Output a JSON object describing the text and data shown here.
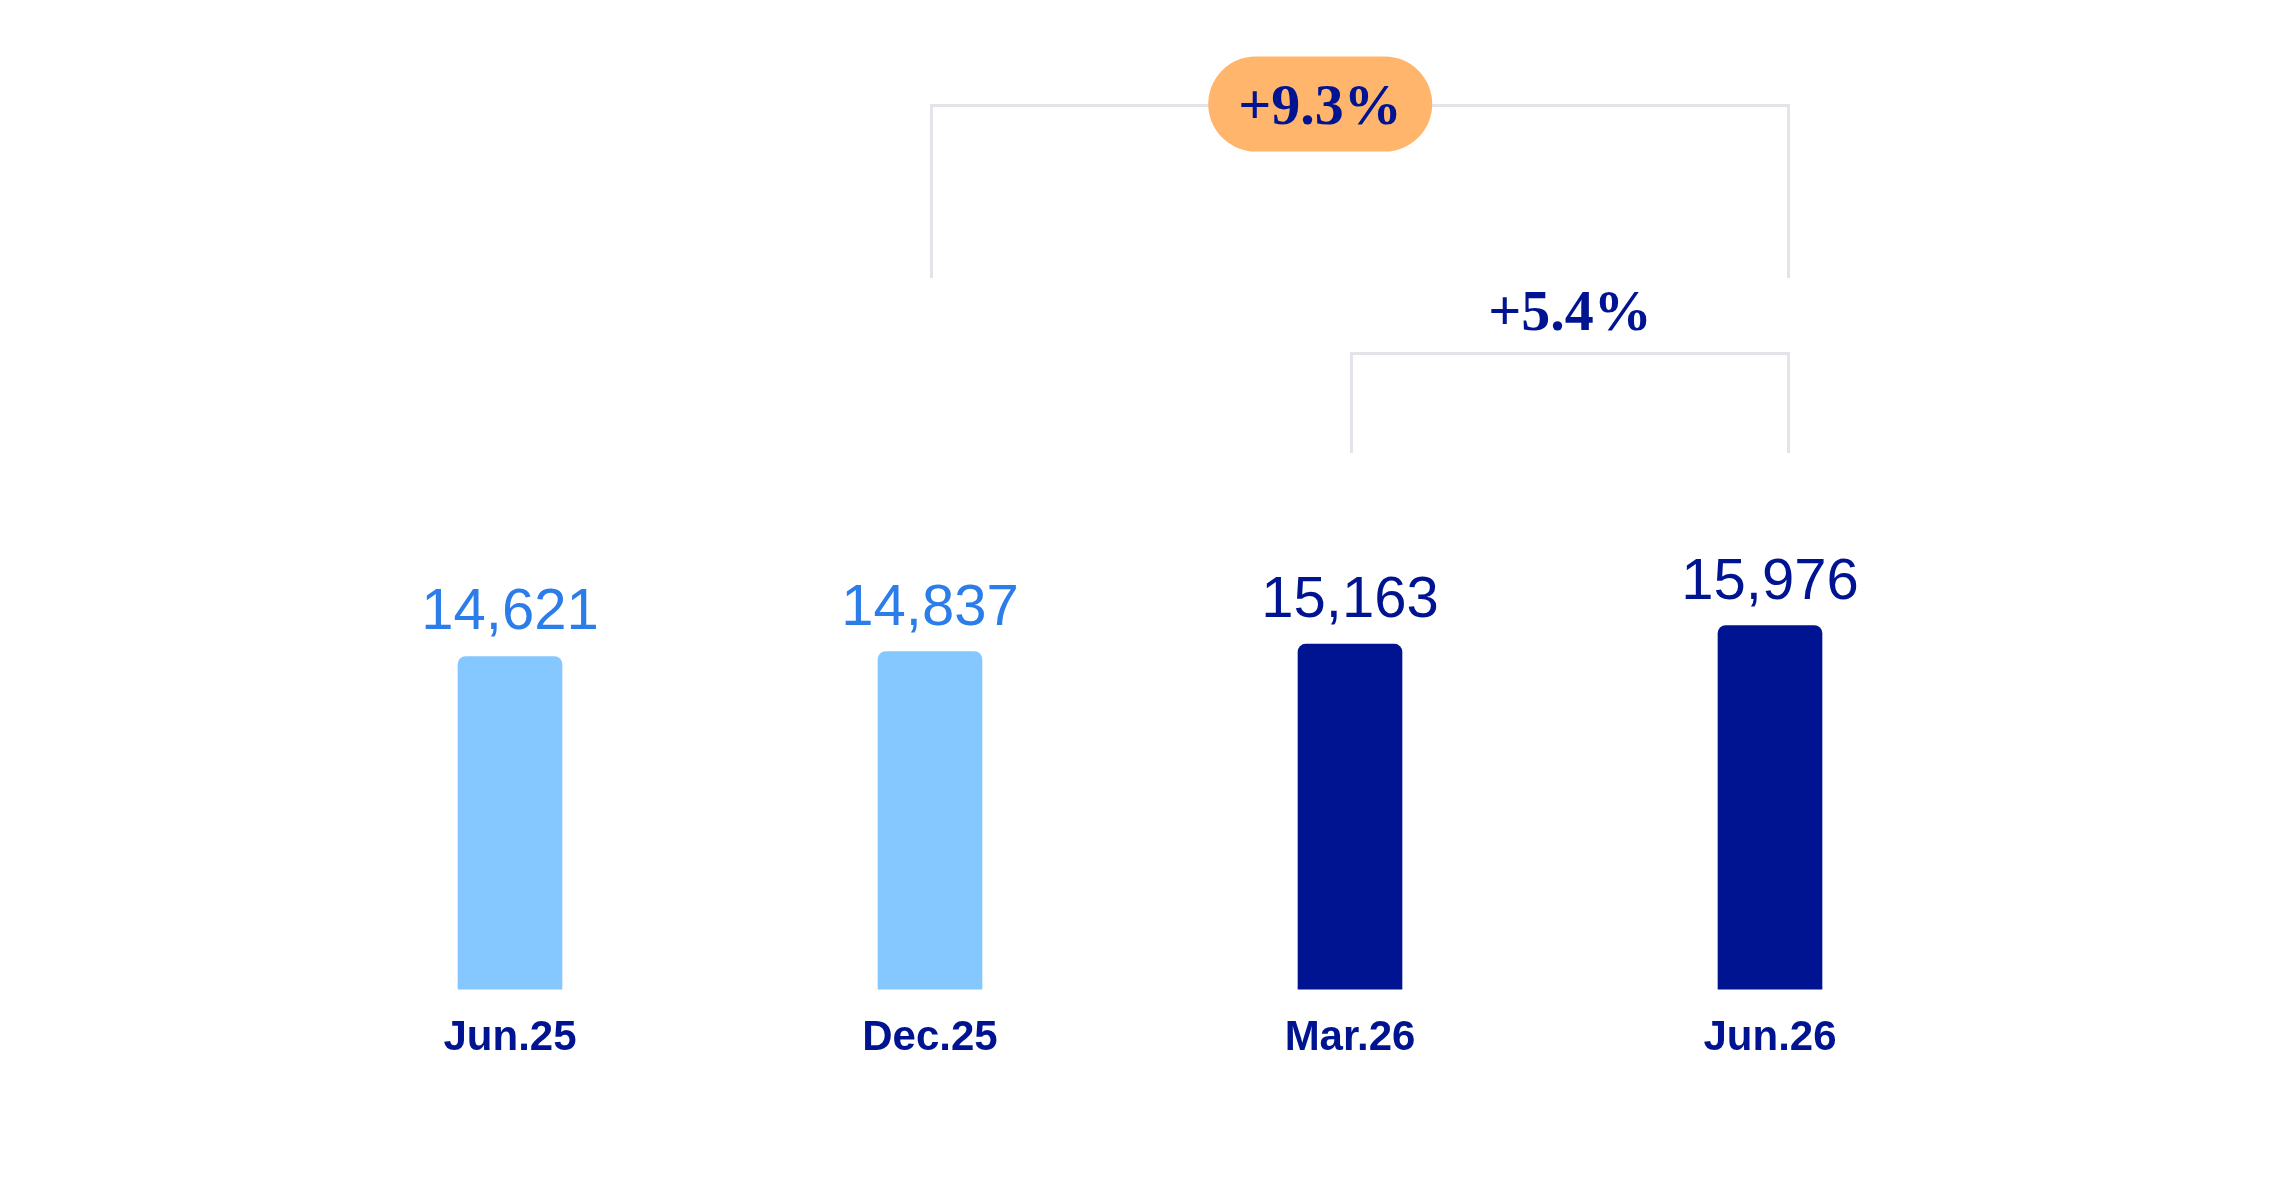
{
  "chart_data": {
    "type": "bar",
    "categories": [
      "Jun.25",
      "Dec.25",
      "Mar.26",
      "Jun.26"
    ],
    "values": [
      14621,
      14837,
      15163,
      15976
    ],
    "colors": [
      "#85c8ff",
      "#85c8ff",
      "#001391",
      "#001391"
    ],
    "value_labels": [
      "14,621",
      "14,837",
      "15,163",
      "15,976"
    ],
    "grid": false,
    "legend": false,
    "annotations": [
      "+9.3%",
      "+5.4%"
    ]
  }
}
